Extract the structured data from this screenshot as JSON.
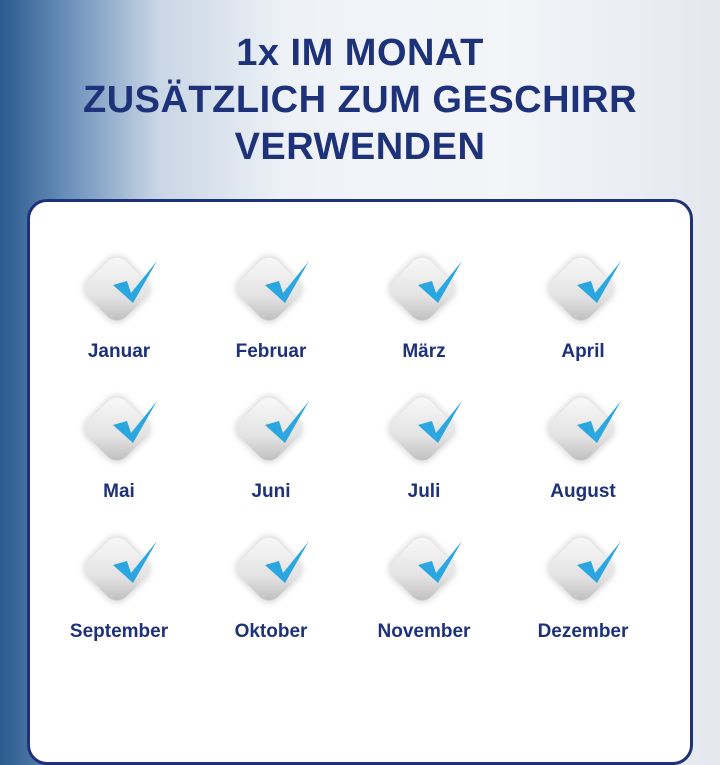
{
  "title": {
    "lines": [
      "1x IM MONAT",
      "ZUSÄTZLICH ZUM GESCHIRR",
      "VERWENDEN"
    ]
  },
  "colors": {
    "text": "#1d3278",
    "check": "#2aa7e0",
    "border": "#1d3278"
  },
  "months": [
    {
      "label": "Januar",
      "icon": "tablet-check-icon"
    },
    {
      "label": "Februar",
      "icon": "tablet-check-icon"
    },
    {
      "label": "März",
      "icon": "tablet-check-icon"
    },
    {
      "label": "April",
      "icon": "tablet-check-icon"
    },
    {
      "label": "Mai",
      "icon": "tablet-check-icon"
    },
    {
      "label": "Juni",
      "icon": "tablet-check-icon"
    },
    {
      "label": "Juli",
      "icon": "tablet-check-icon"
    },
    {
      "label": "August",
      "icon": "tablet-check-icon"
    },
    {
      "label": "September",
      "icon": "tablet-check-icon"
    },
    {
      "label": "Oktober",
      "icon": "tablet-check-icon"
    },
    {
      "label": "November",
      "icon": "tablet-check-icon"
    },
    {
      "label": "Dezember",
      "icon": "tablet-check-icon"
    }
  ]
}
